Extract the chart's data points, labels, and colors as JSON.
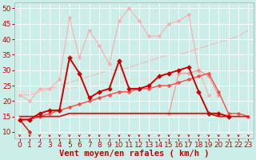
{
  "title": "",
  "xlabel": "Vent moyen/en rafales ( km/h )",
  "xlim": [
    -0.5,
    23.5
  ],
  "ylim": [
    8,
    52
  ],
  "yticks": [
    10,
    15,
    20,
    25,
    30,
    35,
    40,
    45,
    50
  ],
  "xticks": [
    0,
    1,
    2,
    3,
    4,
    5,
    6,
    7,
    8,
    9,
    10,
    11,
    12,
    13,
    14,
    15,
    16,
    17,
    18,
    19,
    20,
    21,
    22,
    23
  ],
  "background_color": "#cceee8",
  "grid_color": "#ffffff",
  "lines": [
    {
      "x": [
        0,
        1,
        2,
        3,
        4,
        5,
        6,
        7,
        8,
        9,
        10,
        11,
        12,
        13,
        14,
        15,
        16,
        17,
        18,
        19,
        20,
        21,
        22,
        23
      ],
      "y": [
        22,
        20,
        24,
        24,
        27,
        47,
        34,
        43,
        38,
        32,
        46,
        50,
        46,
        41,
        41,
        45,
        46,
        48,
        30,
        22,
        null,
        null,
        null,
        null
      ],
      "color": "#ffaaaa",
      "linewidth": 0.9,
      "marker": "D",
      "markersize": 2.5,
      "alpha": 0.85,
      "zorder": 2
    },
    {
      "x": [
        0,
        1,
        2,
        3,
        4,
        5,
        6,
        7,
        8,
        9,
        10,
        11,
        12,
        13,
        14,
        15,
        16,
        17,
        18,
        19,
        20,
        21,
        22,
        23
      ],
      "y": [
        22,
        22,
        23,
        24,
        25,
        26,
        27,
        28,
        29,
        30,
        30,
        31,
        32,
        33,
        34,
        35,
        35,
        36,
        37,
        38,
        39,
        40,
        41,
        43
      ],
      "color": "#ffaaaa",
      "linewidth": 1.0,
      "marker": null,
      "markersize": 0,
      "alpha": 0.6,
      "zorder": 1
    },
    {
      "x": [
        0,
        1,
        2,
        3,
        4,
        5,
        6,
        7,
        8,
        9,
        10,
        11,
        12,
        13,
        14,
        15,
        16,
        17,
        18,
        19,
        20,
        21,
        22,
        23
      ],
      "y": [
        23,
        23,
        23,
        24,
        24,
        24,
        25,
        25,
        26,
        26,
        26,
        27,
        27,
        27,
        28,
        28,
        29,
        29,
        29,
        30,
        30,
        30,
        30,
        30
      ],
      "color": "#ffcccc",
      "linewidth": 1.0,
      "marker": null,
      "markersize": 0,
      "alpha": 0.6,
      "zorder": 1
    },
    {
      "x": [
        0,
        1,
        2,
        3,
        4,
        5,
        6,
        7,
        8,
        9,
        10,
        11,
        12,
        13,
        14,
        15,
        16,
        17,
        18,
        19,
        20,
        21,
        22,
        23
      ],
      "y": [
        null,
        null,
        null,
        null,
        null,
        null,
        null,
        null,
        null,
        null,
        null,
        null,
        null,
        null,
        null,
        16,
        29,
        29,
        30,
        28,
        22,
        null,
        null,
        null
      ],
      "color": "#ff8888",
      "linewidth": 1.0,
      "marker": "D",
      "markersize": 2.5,
      "alpha": 0.8,
      "zorder": 2
    },
    {
      "x": [
        0,
        1,
        2,
        3,
        4,
        5,
        6,
        7,
        8,
        9,
        10,
        11,
        12,
        13,
        14,
        15,
        16,
        17,
        18,
        19,
        20,
        21,
        22,
        23
      ],
      "y": [
        14,
        14,
        16,
        17,
        17,
        34,
        29,
        21,
        23,
        24,
        33,
        24,
        24,
        25,
        28,
        29,
        30,
        31,
        23,
        16,
        16,
        15,
        null,
        null
      ],
      "color": "#cc0000",
      "linewidth": 1.4,
      "marker": "D",
      "markersize": 3.0,
      "alpha": 1.0,
      "zorder": 4
    },
    {
      "x": [
        0,
        1,
        2,
        3,
        4,
        5,
        6,
        7,
        8,
        9,
        10,
        11,
        12,
        13,
        14,
        15,
        16,
        17,
        18,
        19,
        20,
        21,
        22,
        23
      ],
      "y": [
        14,
        14,
        15,
        16,
        17,
        18,
        19,
        20,
        21,
        22,
        23,
        23,
        24,
        24,
        25,
        25,
        26,
        27,
        28,
        29,
        23,
        16,
        16,
        15
      ],
      "color": "#ff4444",
      "linewidth": 1.1,
      "marker": "D",
      "markersize": 2.5,
      "alpha": 0.9,
      "zorder": 3
    },
    {
      "x": [
        0,
        1,
        2,
        3,
        4,
        5,
        6,
        7,
        8,
        9,
        10,
        11,
        12,
        13,
        14,
        15,
        16,
        17,
        18,
        19,
        20,
        21,
        22,
        23
      ],
      "y": [
        15,
        15,
        15,
        15,
        15,
        16,
        16,
        16,
        16,
        16,
        16,
        16,
        16,
        16,
        16,
        16,
        16,
        16,
        16,
        16,
        15,
        15,
        15,
        15
      ],
      "color": "#cc0000",
      "linewidth": 1.3,
      "marker": null,
      "markersize": 0,
      "alpha": 0.9,
      "zorder": 3
    },
    {
      "x": [
        0,
        1,
        2,
        3,
        4,
        5,
        6,
        7,
        8,
        9,
        10,
        11,
        12,
        13,
        14,
        15,
        16,
        17,
        18,
        19,
        20,
        21,
        22,
        23
      ],
      "y": [
        14,
        10,
        null,
        null,
        null,
        null,
        null,
        null,
        null,
        null,
        null,
        null,
        null,
        null,
        null,
        null,
        null,
        null,
        null,
        null,
        null,
        null,
        null,
        null
      ],
      "color": "#dd2222",
      "linewidth": 1.2,
      "marker": "D",
      "markersize": 2.5,
      "alpha": 1.0,
      "zorder": 3
    }
  ],
  "xlabel_color": "#cc0000",
  "xlabel_fontsize": 7.5,
  "tick_color": "#cc0000",
  "tick_fontsize": 6.5
}
